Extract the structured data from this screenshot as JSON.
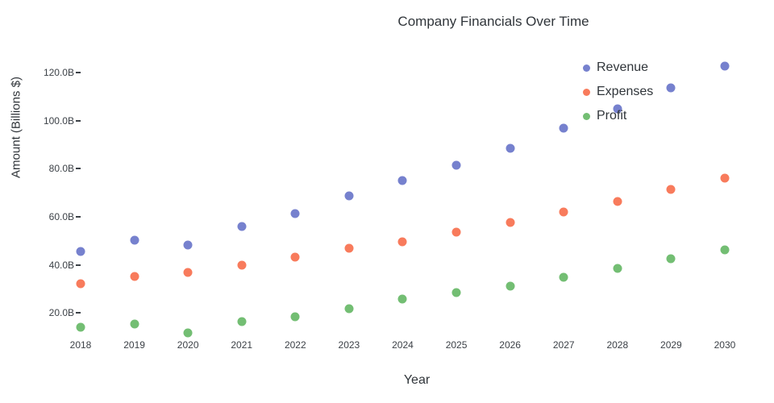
{
  "title": "Company Financials Over Time",
  "legend": {
    "position": "top-right",
    "items": [
      {
        "label": "Revenue",
        "color": "#7681CE"
      },
      {
        "label": "Expenses",
        "color": "#F87B5C"
      },
      {
        "label": "Profit",
        "color": "#73BE73"
      }
    ]
  },
  "axes": {
    "x_title": "Year",
    "y_title": "Amount (Billions $)",
    "y_ticks": [
      {
        "value": 20,
        "label": "20.0B"
      },
      {
        "value": 40,
        "label": "40.0B"
      },
      {
        "value": 60,
        "label": "60.0B"
      },
      {
        "value": 80,
        "label": "80.0B"
      },
      {
        "value": 100,
        "label": "100.0B"
      },
      {
        "value": 120,
        "label": "120.0B"
      }
    ]
  },
  "chart_data": {
    "type": "scatter",
    "title": "Company Financials Over Time",
    "xlabel": "Year",
    "ylabel": "Amount (Billions $)",
    "x": [
      2018,
      2019,
      2020,
      2021,
      2022,
      2023,
      2024,
      2025,
      2026,
      2027,
      2028,
      2029,
      2030
    ],
    "series": [
      {
        "name": "Revenue",
        "color": "#7681CE",
        "values": [
          45.5,
          50.4,
          48.2,
          55.9,
          61.2,
          68.6,
          75.0,
          81.5,
          88.6,
          96.8,
          105.0,
          113.5,
          122.5
        ]
      },
      {
        "name": "Expenses",
        "color": "#F87B5C",
        "values": [
          32.0,
          35.1,
          36.8,
          39.8,
          43.2,
          47.0,
          49.5,
          53.5,
          57.6,
          62.0,
          66.3,
          71.4,
          76.2
        ]
      },
      {
        "name": "Profit",
        "color": "#73BE73",
        "values": [
          14.1,
          15.4,
          11.6,
          16.4,
          18.4,
          21.8,
          25.8,
          28.4,
          31.3,
          34.8,
          38.6,
          42.5,
          46.3
        ]
      }
    ],
    "ylim": [
      9,
      132
    ],
    "xlim": [
      2018,
      2030.6
    ],
    "grid": false,
    "axis_lines": false,
    "legend_position": "top-right-inside",
    "marker_size_px": 11
  }
}
